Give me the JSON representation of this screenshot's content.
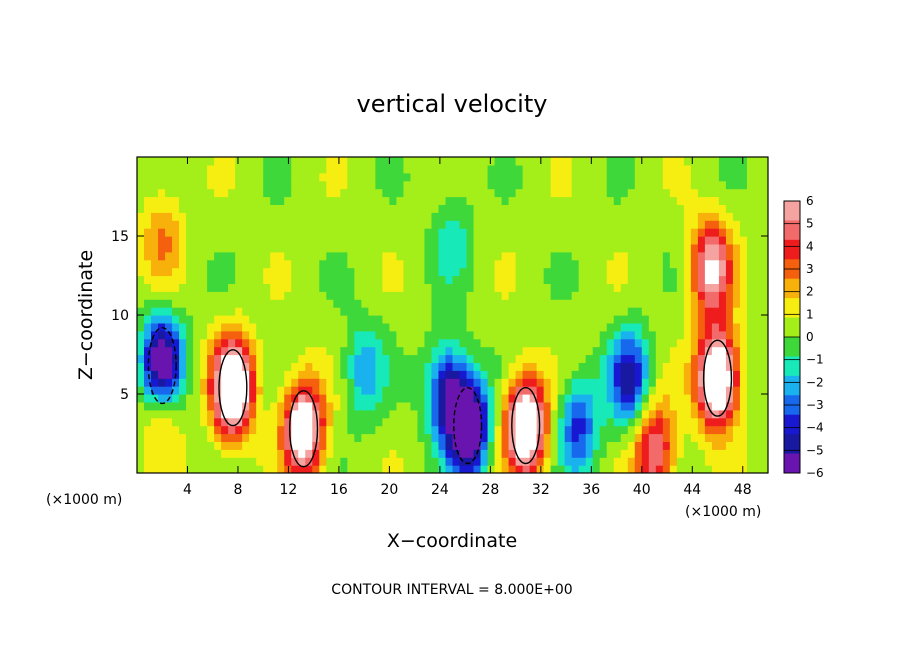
{
  "chart_data": {
    "type": "heatmap",
    "title": "vertical velocity",
    "xlabel": "X−coordinate",
    "ylabel": "Z−coordinate",
    "x_unit_left": "(×1000 m)",
    "x_unit_right": "(×1000 m)",
    "footer": "CONTOUR INTERVAL = 8.000E+00",
    "xlim": [
      0,
      50
    ],
    "ylim": [
      0,
      20
    ],
    "x_ticks": [
      4,
      8,
      12,
      16,
      20,
      24,
      28,
      32,
      36,
      40,
      44,
      48
    ],
    "y_ticks": [
      5,
      10,
      15
    ],
    "colorbar": {
      "range": [
        -6,
        6
      ],
      "labels": [
        "6",
        "5",
        "4",
        "3",
        "2",
        "1",
        "0",
        "−1",
        "−2",
        "−3",
        "−4",
        "−5",
        "−6"
      ],
      "colors": [
        "#f4a3a0",
        "#f36a6a",
        "#ee1c1c",
        "#f5600f",
        "#f8b00b",
        "#f6ee11",
        "#a4ee1a",
        "#3fd83a",
        "#18e9b9",
        "#1ab2ee",
        "#1868ee",
        "#1818d0",
        "#1818a0",
        "#6a14b0"
      ]
    },
    "features": [
      {
        "x": 2.0,
        "z": 4.5,
        "w": 0.35
      },
      {
        "x": 2.0,
        "z": 6.8,
        "w": -0.9
      },
      {
        "x": 7.6,
        "z": 5.4,
        "w": 1.0
      },
      {
        "x": 13.2,
        "z": 2.8,
        "w": 0.85
      },
      {
        "x": 26.2,
        "z": 3.0,
        "w": -0.95
      },
      {
        "x": 24.5,
        "z": 5.2,
        "w": -0.55
      },
      {
        "x": 30.8,
        "z": 3.0,
        "w": 0.95
      },
      {
        "x": 46.0,
        "z": 6.0,
        "w": 1.0
      },
      {
        "x": 45.5,
        "z": 13.0,
        "w": 0.65
      },
      {
        "x": 39.0,
        "z": 6.0,
        "w": -0.55
      },
      {
        "x": 2.0,
        "z": 15.0,
        "w": 0.25
      },
      {
        "x": 25.0,
        "z": 15.0,
        "w": -0.18
      },
      {
        "x": 18.0,
        "z": 6.5,
        "w": -0.3
      },
      {
        "x": 41.0,
        "z": 1.5,
        "w": 0.55
      },
      {
        "x": 35.0,
        "z": 3.0,
        "w": -0.45
      }
    ]
  }
}
